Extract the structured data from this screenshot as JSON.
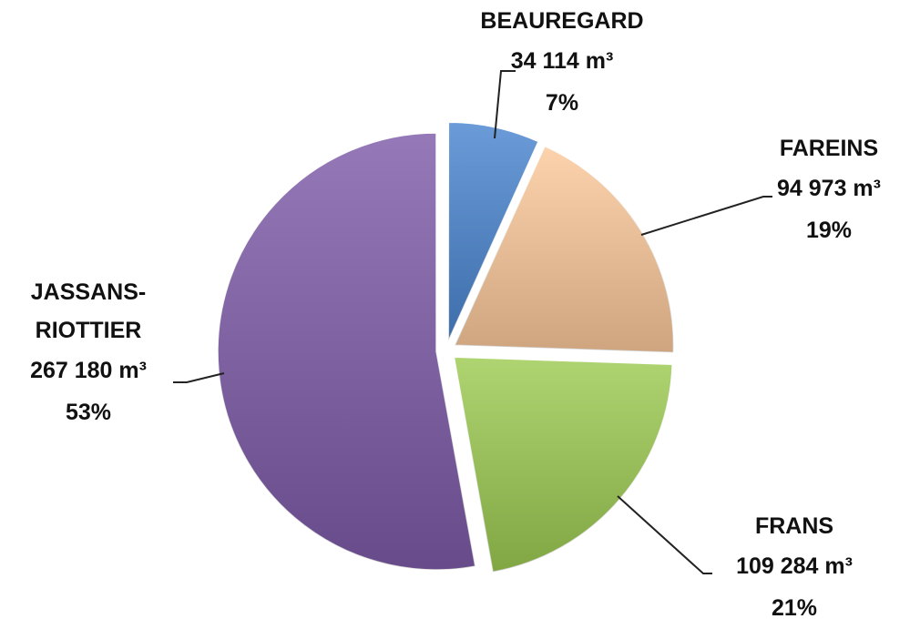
{
  "chart_data": {
    "type": "pie",
    "categories": [
      "BEAUREGARD",
      "FAREINS",
      "FRANS",
      "JASSANS-RIOTTIER"
    ],
    "values": [
      34114,
      94973,
      109284,
      267180
    ],
    "value_labels": [
      "34 114 m³",
      "94 973 m³",
      "109 284 m³",
      "267 180 m³"
    ],
    "percent_labels": [
      "7%",
      "19%",
      "21%",
      "53%"
    ],
    "colors": [
      "#4a86d0",
      "#fbc99b",
      "#9dcb52",
      "#7e5ba8"
    ]
  }
}
